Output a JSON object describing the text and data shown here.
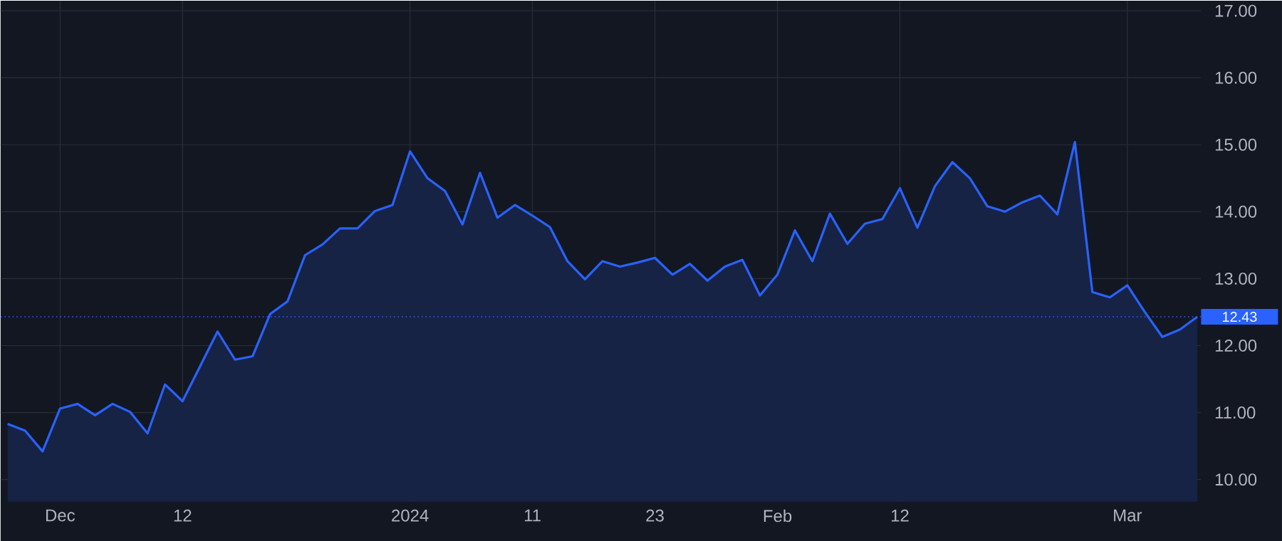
{
  "chart_data": {
    "type": "area",
    "categories": [
      null,
      null,
      null,
      "Dec",
      null,
      null,
      null,
      null,
      null,
      null,
      "12",
      null,
      null,
      null,
      null,
      null,
      null,
      null,
      null,
      null,
      null,
      null,
      null,
      "2024",
      null,
      null,
      null,
      null,
      null,
      null,
      "11",
      null,
      null,
      null,
      null,
      null,
      null,
      "23",
      null,
      null,
      null,
      null,
      null,
      null,
      "Feb",
      null,
      null,
      null,
      null,
      null,
      null,
      "12",
      null,
      null,
      null,
      null,
      null,
      null,
      null,
      null,
      null,
      null,
      null,
      null,
      "Mar",
      null,
      null,
      null,
      null
    ],
    "series": [
      {
        "color": "#2962ff",
        "values": [
          10.83,
          10.73,
          10.42,
          11.06,
          11.13,
          10.96,
          11.13,
          11.01,
          10.69,
          11.42,
          11.17,
          11.69,
          12.21,
          11.79,
          11.84,
          12.47,
          12.66,
          13.35,
          13.51,
          13.75,
          13.75,
          14.01,
          14.1,
          14.9,
          14.5,
          14.31,
          13.81,
          14.58,
          13.91,
          14.1,
          13.94,
          13.77,
          13.26,
          12.99,
          13.26,
          13.18,
          13.24,
          13.31,
          13.06,
          13.22,
          12.97,
          13.18,
          13.28,
          12.75,
          13.06,
          13.72,
          13.26,
          13.97,
          13.52,
          13.82,
          13.89,
          14.35,
          13.76,
          14.38,
          14.74,
          14.5,
          14.08,
          14.0,
          14.14,
          14.24,
          13.96,
          15.04,
          12.8,
          12.72,
          12.9,
          12.5,
          12.13,
          12.24,
          12.43
        ]
      }
    ],
    "ylim": [
      9.67,
      17.15
    ],
    "yticks": [
      {
        "value": 10,
        "label": "10.00"
      },
      {
        "value": 11,
        "label": "11.00"
      },
      {
        "value": 12,
        "label": "12.00"
      },
      {
        "value": 13,
        "label": "13.00"
      },
      {
        "value": 14,
        "label": "14.00"
      },
      {
        "value": 15,
        "label": "15.00"
      },
      {
        "value": 16,
        "label": "16.00"
      },
      {
        "value": 17,
        "label": "17.00"
      }
    ],
    "ref_lines": [
      {
        "axis": "y",
        "value": 12.43,
        "label": "12.43",
        "color": "#2962ff",
        "line_style": "dotted"
      }
    ],
    "grid": true,
    "marker": "none",
    "line_style": "solid"
  }
}
